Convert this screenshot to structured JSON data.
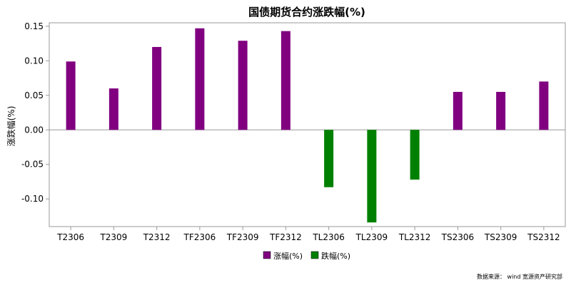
{
  "chart_data": {
    "type": "bar",
    "title": "国债期货合约涨跌幅(%)",
    "xlabel": "",
    "ylabel": "涨跌幅(%)",
    "categories": [
      "T2306",
      "T2309",
      "T2312",
      "TF2306",
      "TF2309",
      "TF2312",
      "TL2306",
      "TL2309",
      "TL2312",
      "TS2306",
      "TS2309",
      "TS2312"
    ],
    "values": [
      0.099,
      0.06,
      0.12,
      0.147,
      0.129,
      0.143,
      -0.083,
      -0.134,
      -0.072,
      0.055,
      0.055,
      0.07
    ],
    "ylim": [
      -0.14,
      0.155
    ],
    "yticks": [
      "0.15",
      "0.10",
      "0.05",
      "0.00",
      "-0.05",
      "-0.10"
    ],
    "ytick_values": [
      0.15,
      0.1,
      0.05,
      0.0,
      -0.05,
      -0.1
    ],
    "legend": [
      {
        "label": "涨幅(%)",
        "color": "#800080"
      },
      {
        "label": "跌幅(%)",
        "color": "#008000"
      }
    ],
    "legend_position": "bottom-center",
    "grid": false,
    "colors": {
      "rise": "#800080",
      "fall": "#008000"
    }
  },
  "source": "数据来源： wind 宽源资产研究部"
}
